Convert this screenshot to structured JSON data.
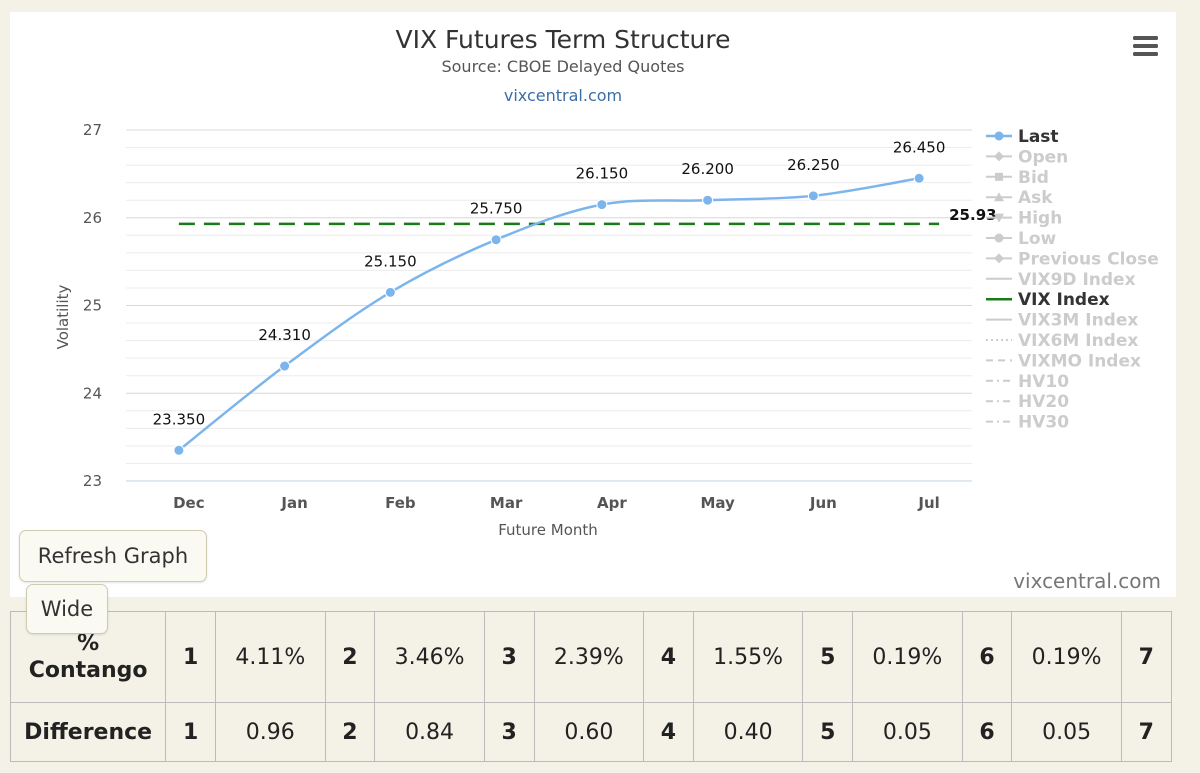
{
  "chart_data": {
    "type": "line",
    "title": "VIX Futures Term Structure",
    "subtitle": "Source: CBOE Delayed Quotes",
    "site_link": "vixcentral.com",
    "credits": "vixcentral.com",
    "xlabel": "Future Month",
    "ylabel": "Volatility",
    "ylim": [
      23,
      27
    ],
    "yticks": [
      "23",
      "24",
      "25",
      "26",
      "27"
    ],
    "categories": [
      "Dec",
      "Jan",
      "Feb",
      "Mar",
      "Apr",
      "May",
      "Jun",
      "Jul"
    ],
    "series": [
      {
        "name": "Last",
        "color": "#7cb5ec",
        "values": [
          23.35,
          24.31,
          25.15,
          25.75,
          26.15,
          26.2,
          26.25,
          26.45
        ],
        "labels": [
          "23.350",
          "24.310",
          "25.150",
          "25.750",
          "26.150",
          "26.200",
          "26.250",
          "26.450"
        ]
      }
    ],
    "reference_line": {
      "name": "VIX Index",
      "value": 25.93,
      "label": "25.93",
      "color": "#1a7a1a",
      "style": "dashed"
    },
    "grid": true,
    "legend_position": "right",
    "legend": [
      {
        "name": "Last",
        "symbol": "circle",
        "active": true,
        "color": "#7cb5ec"
      },
      {
        "name": "Open",
        "symbol": "diamond",
        "active": false
      },
      {
        "name": "Bid",
        "symbol": "square",
        "active": false
      },
      {
        "name": "Ask",
        "symbol": "triangle",
        "active": false
      },
      {
        "name": "High",
        "symbol": "triangle-down",
        "active": false
      },
      {
        "name": "Low",
        "symbol": "circle",
        "active": false
      },
      {
        "name": "Previous Close",
        "symbol": "diamond",
        "active": false
      },
      {
        "name": "VIX9D Index",
        "symbol": "line",
        "active": false
      },
      {
        "name": "VIX Index",
        "symbol": "line",
        "active": true,
        "color": "#1a7a1a"
      },
      {
        "name": "VIX3M Index",
        "symbol": "line",
        "active": false
      },
      {
        "name": "VIX6M Index",
        "symbol": "dotted",
        "active": false
      },
      {
        "name": "VIXMO Index",
        "symbol": "dashed",
        "active": false
      },
      {
        "name": "HV10",
        "symbol": "dashdot",
        "active": false
      },
      {
        "name": "HV20",
        "symbol": "dashdot",
        "active": false
      },
      {
        "name": "HV30",
        "symbol": "dashdot",
        "active": false
      }
    ]
  },
  "menu_icon": "hamburger-menu-icon",
  "buttons": {
    "refresh": "Refresh Graph",
    "wide": "Wide"
  },
  "table": {
    "contango": {
      "label_line1": "%",
      "label_line2": "Contango",
      "cells": [
        [
          "1",
          "4.11%"
        ],
        [
          "2",
          "3.46%"
        ],
        [
          "3",
          "2.39%"
        ],
        [
          "4",
          "1.55%"
        ],
        [
          "5",
          "0.19%"
        ],
        [
          "6",
          "0.19%"
        ],
        [
          "7",
          ""
        ]
      ]
    },
    "difference": {
      "label": "Difference",
      "cells": [
        [
          "1",
          "0.96"
        ],
        [
          "2",
          "0.84"
        ],
        [
          "3",
          "0.60"
        ],
        [
          "4",
          "0.40"
        ],
        [
          "5",
          "0.05"
        ],
        [
          "6",
          "0.05"
        ],
        [
          "7",
          ""
        ]
      ]
    }
  }
}
